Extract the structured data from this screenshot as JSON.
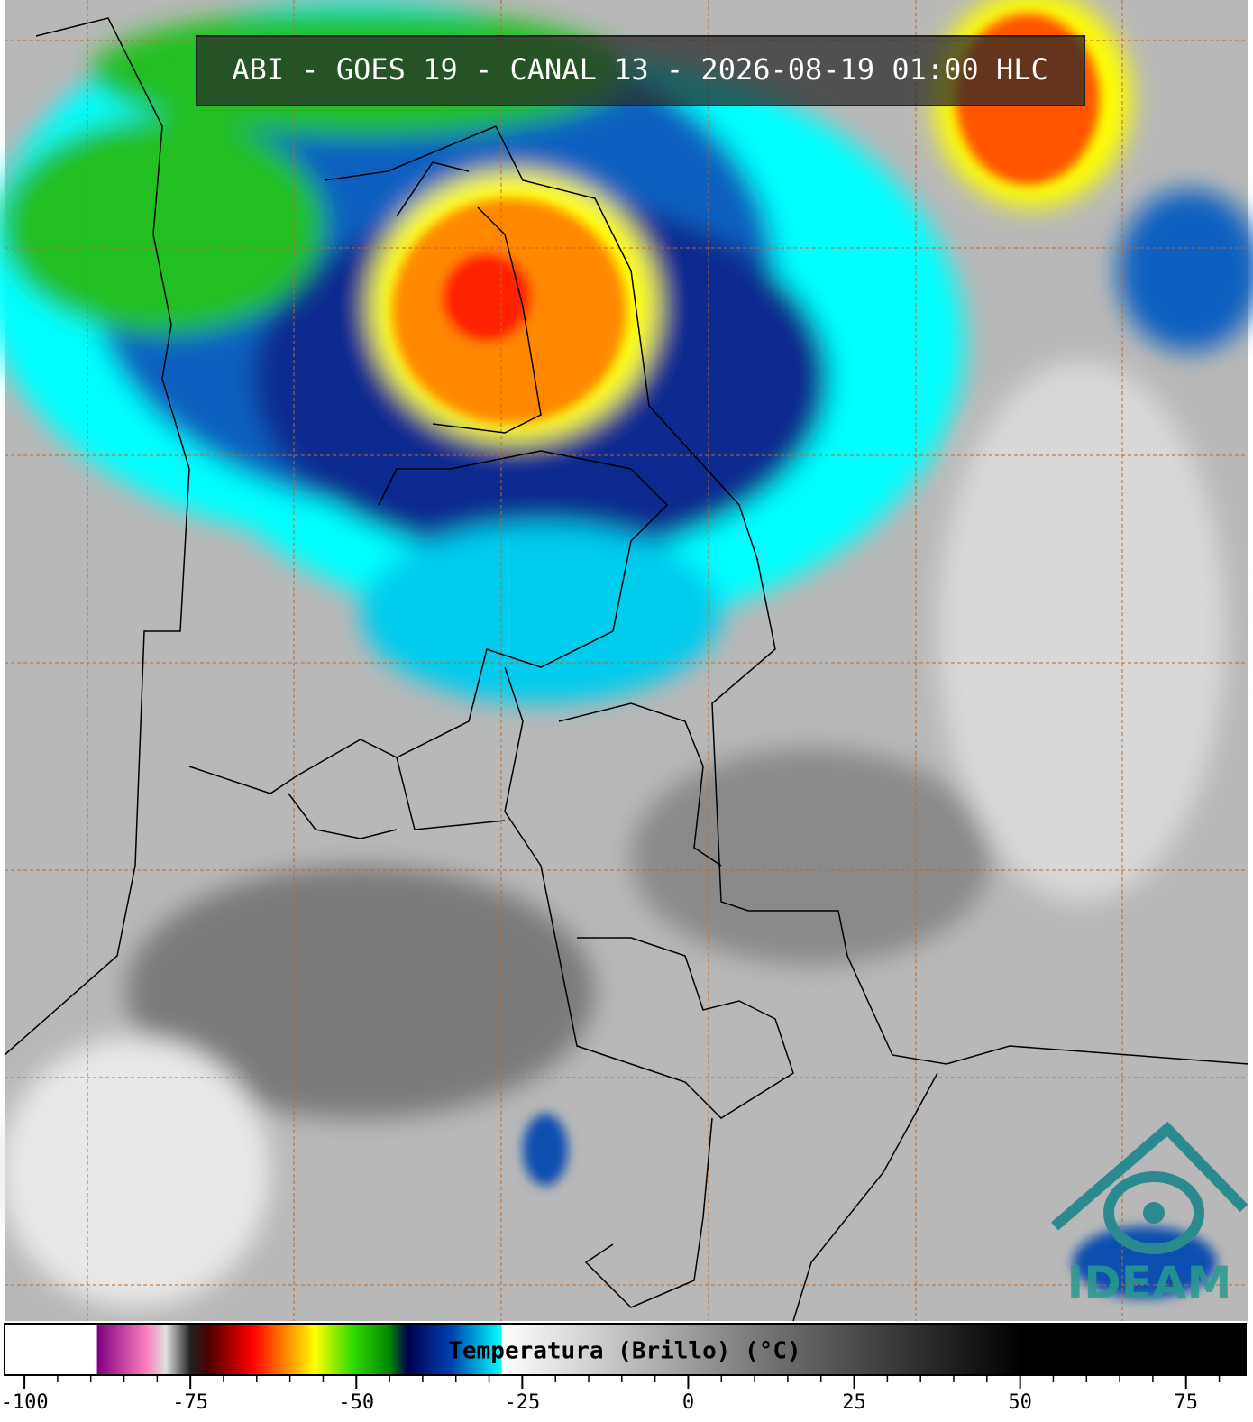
{
  "title": "ABI - GOES 19 - CANAL 13 - 2026-08-19 01:00 HLC",
  "logo_text": "IDEAM",
  "colorbar": {
    "label": "Temperatura (Brillo) (°C)",
    "lim": [
      -103,
      84
    ],
    "ticks": [
      -100,
      -75,
      -50,
      -25,
      0,
      25,
      50,
      75
    ],
    "minor_ticks": [
      -95,
      -90,
      -85,
      -80,
      -70,
      -65,
      -60,
      -55,
      -45,
      -40,
      -35,
      -30,
      -20,
      -15,
      -10,
      -5,
      5,
      10,
      15,
      20,
      30,
      35,
      40,
      45,
      55,
      60,
      65,
      70,
      80
    ]
  }
}
